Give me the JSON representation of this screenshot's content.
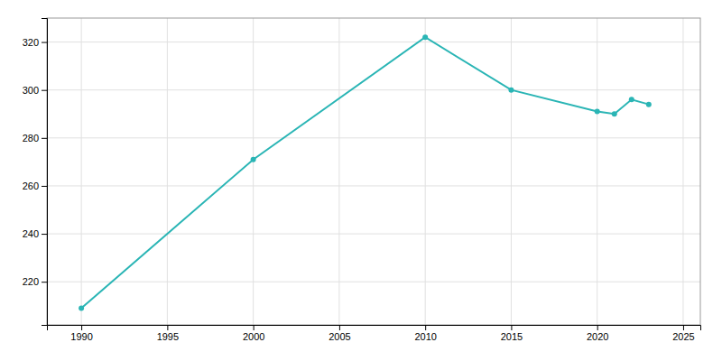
{
  "chart_data": {
    "type": "line",
    "x": [
      1990,
      2000,
      2010,
      2015,
      2020,
      2021,
      2022,
      2023
    ],
    "values": [
      209,
      271,
      322,
      300,
      291,
      290,
      296,
      294
    ],
    "color": "#2ab5b5",
    "marker": "circle",
    "xlim": [
      1988,
      2026
    ],
    "xticks": [
      1990,
      1995,
      2000,
      2005,
      2010,
      2015,
      2020,
      2025
    ],
    "ylim": [
      202,
      330
    ],
    "yticks": [
      220,
      240,
      260,
      280,
      300,
      320
    ],
    "grid": true
  }
}
